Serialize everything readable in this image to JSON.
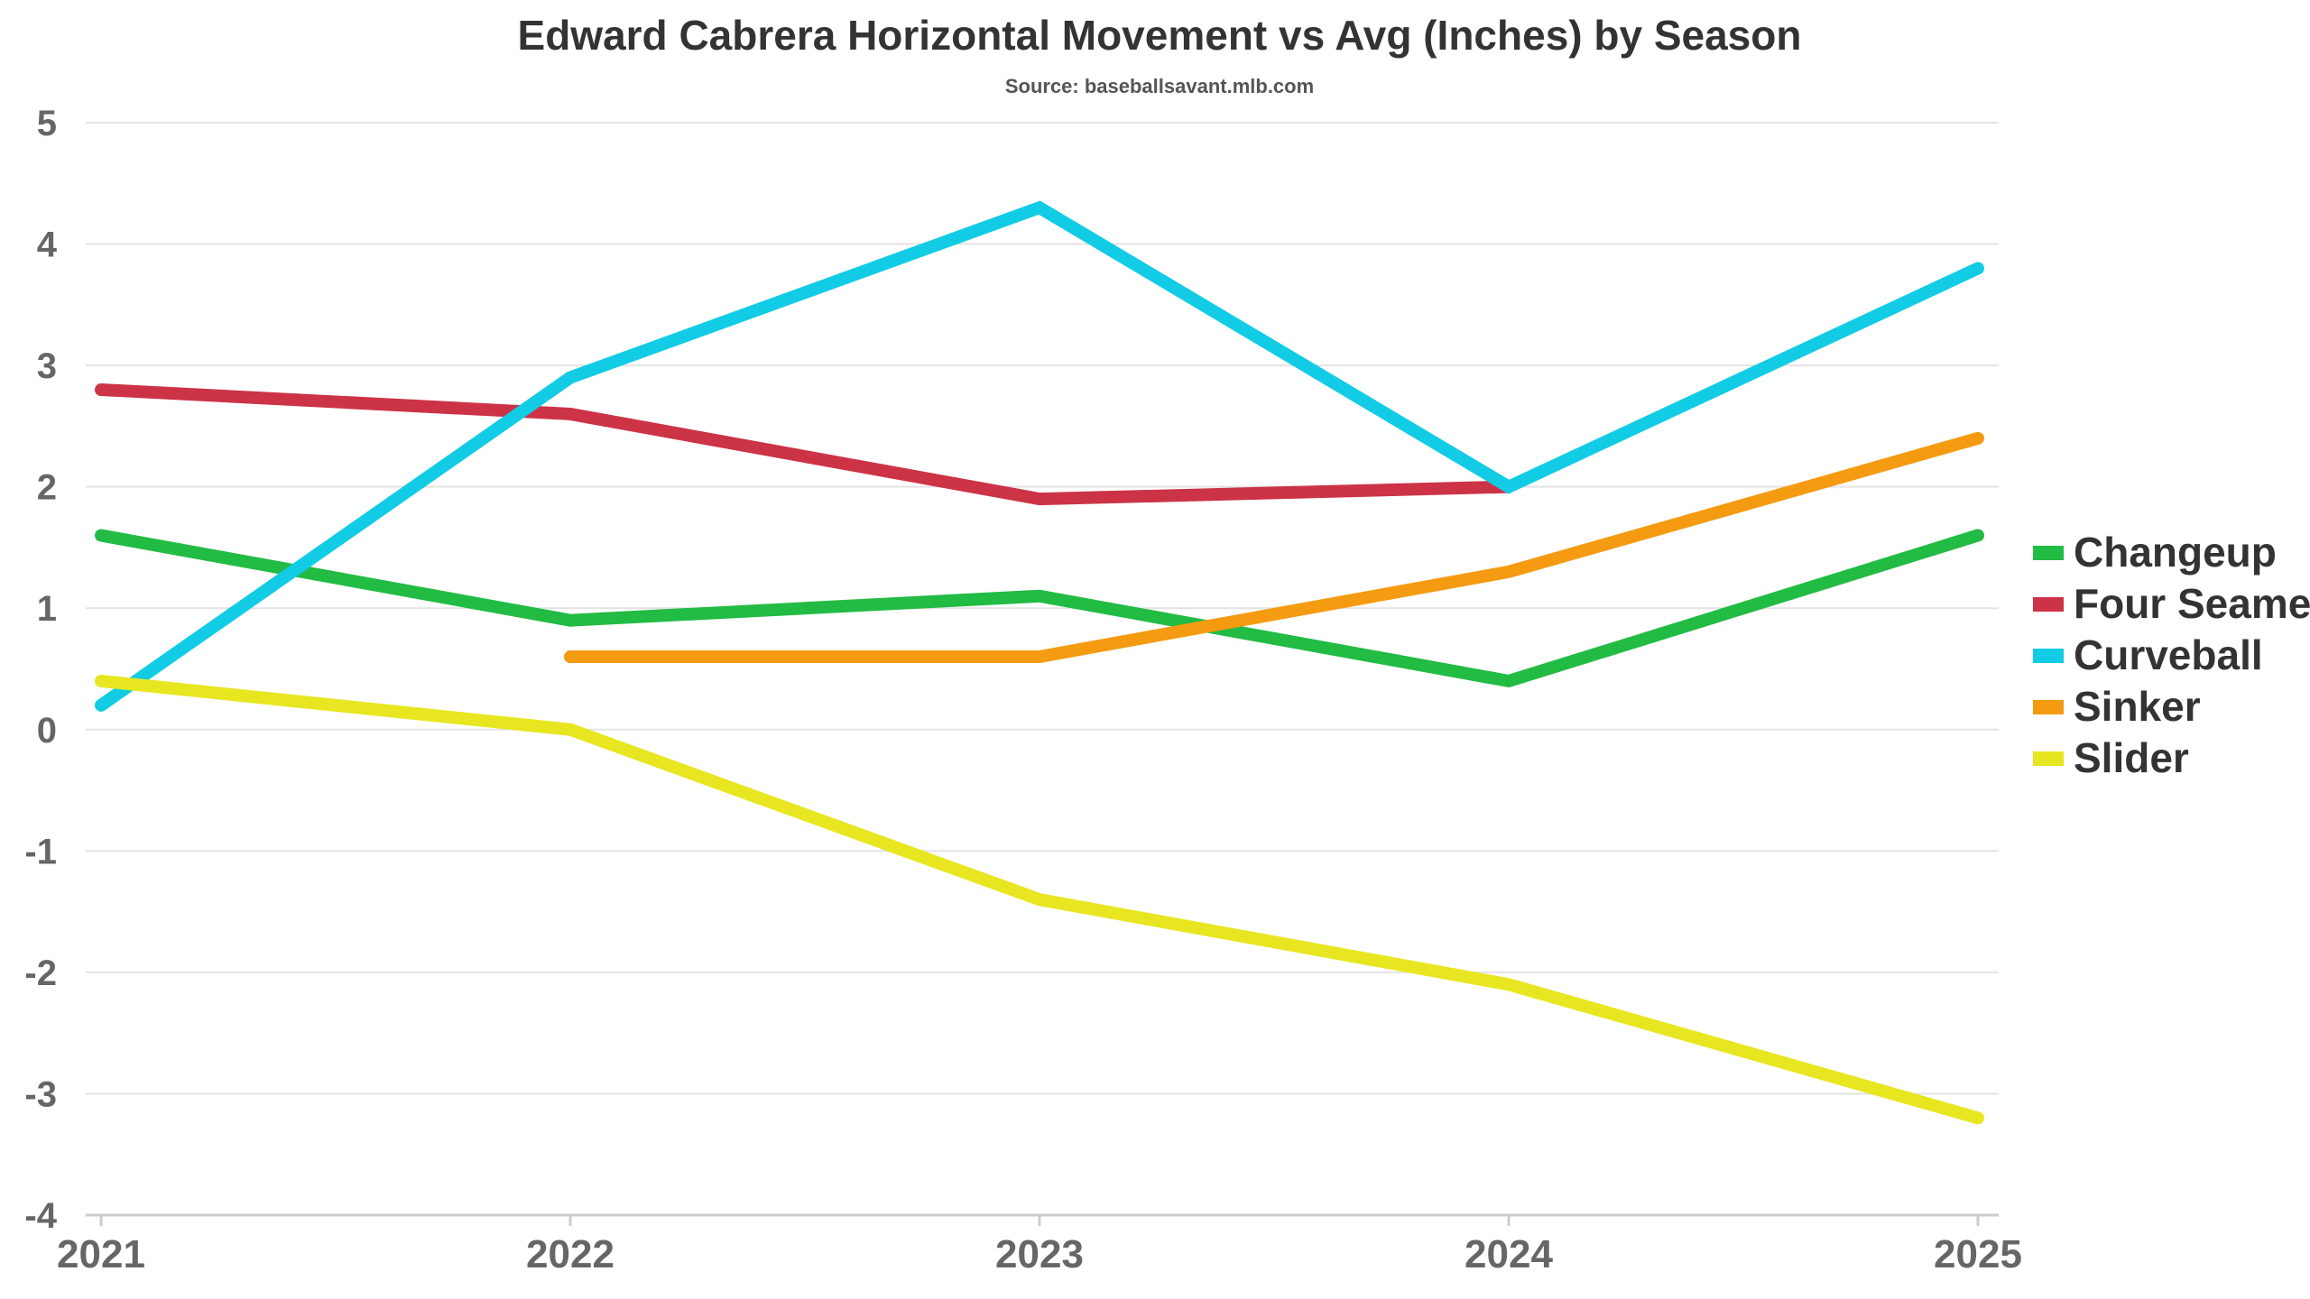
{
  "chart_data": {
    "type": "line",
    "title": "Edward Cabrera Horizontal Movement vs Avg (Inches) by Season",
    "subtitle": "Source: baseballsavant.mlb.com",
    "categories": [
      "2021",
      "2022",
      "2023",
      "2024",
      "2025"
    ],
    "ylim": [
      -4,
      5
    ],
    "y_ticks": [
      "5",
      "4",
      "3",
      "2",
      "1",
      "0",
      "-1",
      "-2",
      "-3",
      "-4"
    ],
    "grid": true,
    "legend_position": "right",
    "series": [
      {
        "name": "Changeup",
        "color": "#22bb44",
        "values": [
          1.6,
          0.9,
          1.1,
          0.4,
          1.6
        ]
      },
      {
        "name": "Four Seamer",
        "color": "#cc3347",
        "values": [
          2.8,
          2.6,
          1.9,
          2.0,
          null
        ]
      },
      {
        "name": "Curveball",
        "color": "#11cce4",
        "values": [
          0.2,
          2.9,
          4.3,
          2.0,
          3.8
        ]
      },
      {
        "name": "Sinker",
        "color": "#f49b12",
        "values": [
          null,
          0.6,
          0.6,
          1.3,
          2.4
        ]
      },
      {
        "name": "Slider",
        "color": "#e8e620",
        "values": [
          0.4,
          0.0,
          -1.4,
          -2.1,
          -3.2
        ]
      }
    ]
  }
}
